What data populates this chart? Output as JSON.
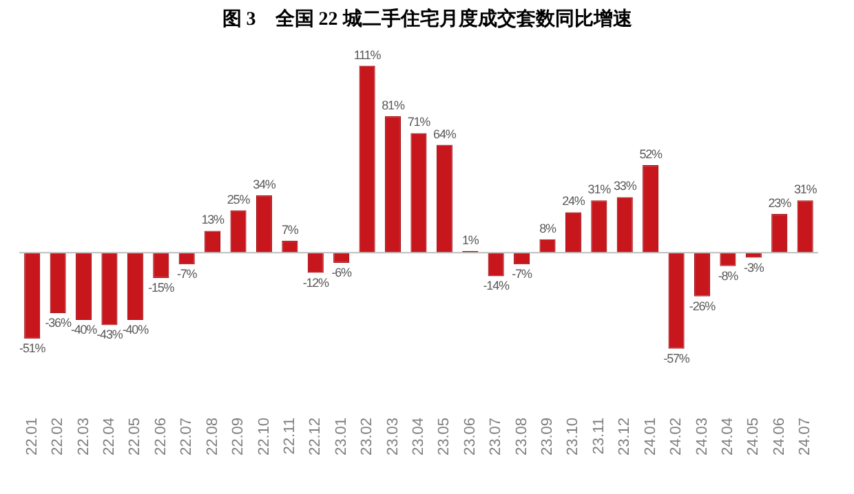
{
  "chart_data": {
    "type": "bar",
    "title": "图 3    全国 22 城二手住宅月度成交套数同比增速",
    "categories": [
      "22.01",
      "22.02",
      "22.03",
      "22.04",
      "22.05",
      "22.06",
      "22.07",
      "22.08",
      "22.09",
      "22.10",
      "22.11",
      "22.12",
      "23.01",
      "23.02",
      "23.03",
      "23.04",
      "23.05",
      "23.06",
      "23.07",
      "23.08",
      "23.09",
      "23.10",
      "23.11",
      "23.12",
      "24.01",
      "24.02",
      "24.03",
      "24.04",
      "24.05",
      "24.06",
      "24.07"
    ],
    "values": [
      -51,
      -36,
      -40,
      -43,
      -40,
      -15,
      -7,
      13,
      25,
      34,
      7,
      -12,
      -6,
      111,
      81,
      71,
      64,
      1,
      -14,
      -7,
      8,
      24,
      31,
      33,
      52,
      -57,
      -26,
      -8,
      -3,
      23,
      31
    ],
    "value_labels": [
      "-51%",
      "-36%",
      "-40%",
      "-43%",
      "-40%",
      "-15%",
      "-7%",
      "13%",
      "25%",
      "34%",
      "7%",
      "-12%",
      "-6%",
      "111%",
      "81%",
      "71%",
      "64%",
      "1%",
      "-14%",
      "-7%",
      "8%",
      "24%",
      "31%",
      "33%",
      "52%",
      "-57%",
      "-26%",
      "-8%",
      "-3%",
      "23%",
      "31%"
    ],
    "color": "#c8161d",
    "tick_labels": "x",
    "grid": false,
    "legend": false
  }
}
